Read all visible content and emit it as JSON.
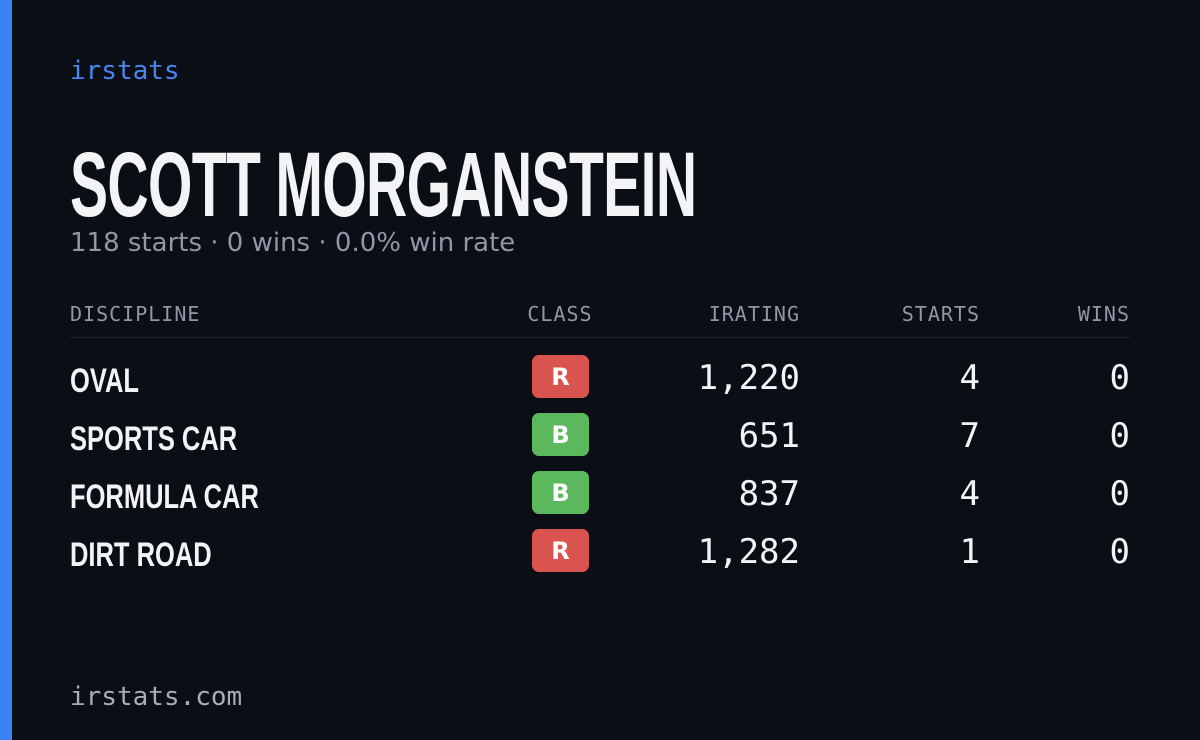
{
  "brand": "irstats",
  "driver": {
    "name": "SCOTT MORGANSTEIN",
    "summary": "118 starts · 0 wins · 0.0% win rate"
  },
  "table": {
    "headers": [
      "DISCIPLINE",
      "CLASS",
      "IRATING",
      "STARTS",
      "WINS"
    ],
    "rows": [
      {
        "discipline": "OVAL",
        "class": "R",
        "class_color": "#d9534f",
        "irating": "1,220",
        "starts": "4",
        "wins": "0"
      },
      {
        "discipline": "SPORTS CAR",
        "class": "B",
        "class_color": "#5cb85c",
        "irating": "651",
        "starts": "7",
        "wins": "0"
      },
      {
        "discipline": "FORMULA CAR",
        "class": "B",
        "class_color": "#5cb85c",
        "irating": "837",
        "starts": "4",
        "wins": "0"
      },
      {
        "discipline": "DIRT ROAD",
        "class": "R",
        "class_color": "#d9534f",
        "irating": "1,282",
        "starts": "1",
        "wins": "0"
      }
    ]
  },
  "footer": "irstats.com"
}
